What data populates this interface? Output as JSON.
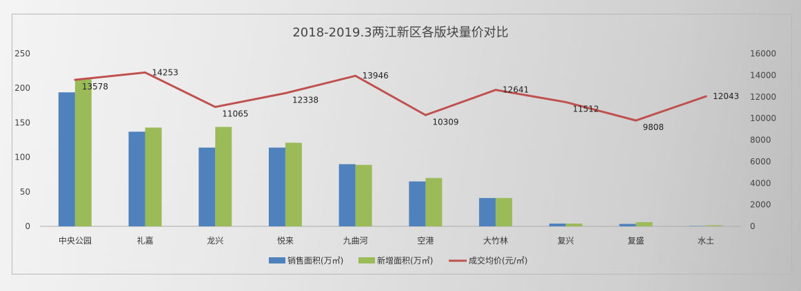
{
  "chart_data": {
    "type": "bar",
    "title": "2018-2019.3两江新区各版块量价对比",
    "categories": [
      "中央公园",
      "礼嘉",
      "龙兴",
      "悦来",
      "九曲河",
      "空港",
      "大竹林",
      "复兴",
      "复盛",
      "水土"
    ],
    "series": [
      {
        "name": "销售面积(万㎡)",
        "type": "bar",
        "axis": "left",
        "color": "#4f81bd",
        "values": [
          194,
          137,
          114,
          114,
          90,
          65,
          41,
          4,
          3.5,
          0.5
        ]
      },
      {
        "name": "新增面积(万㎡)",
        "type": "bar",
        "axis": "left",
        "color": "#9bbb59",
        "values": [
          213,
          143,
          144,
          121,
          89,
          70,
          41,
          4,
          6,
          1.5
        ]
      },
      {
        "name": "成交均价(元/㎡)",
        "type": "line",
        "axis": "right",
        "color": "#c0504d",
        "values": [
          13578,
          14253,
          11065,
          12338,
          13946,
          10309,
          12641,
          11512,
          9808,
          12043
        ],
        "data_labels": [
          "13578",
          "14253",
          "11065",
          "12338",
          "13946",
          "10309",
          "12641",
          "11512",
          "9808",
          "12043"
        ]
      }
    ],
    "left_axis": {
      "range": [
        0,
        250
      ],
      "ticks": [
        "0",
        "50",
        "100",
        "150",
        "200",
        "250"
      ]
    },
    "right_axis": {
      "range": [
        0,
        16000
      ],
      "ticks": [
        "0",
        "2000",
        "4000",
        "6000",
        "8000",
        "10000",
        "12000",
        "14000",
        "16000"
      ]
    },
    "legend_position": "bottom",
    "grid": false
  }
}
